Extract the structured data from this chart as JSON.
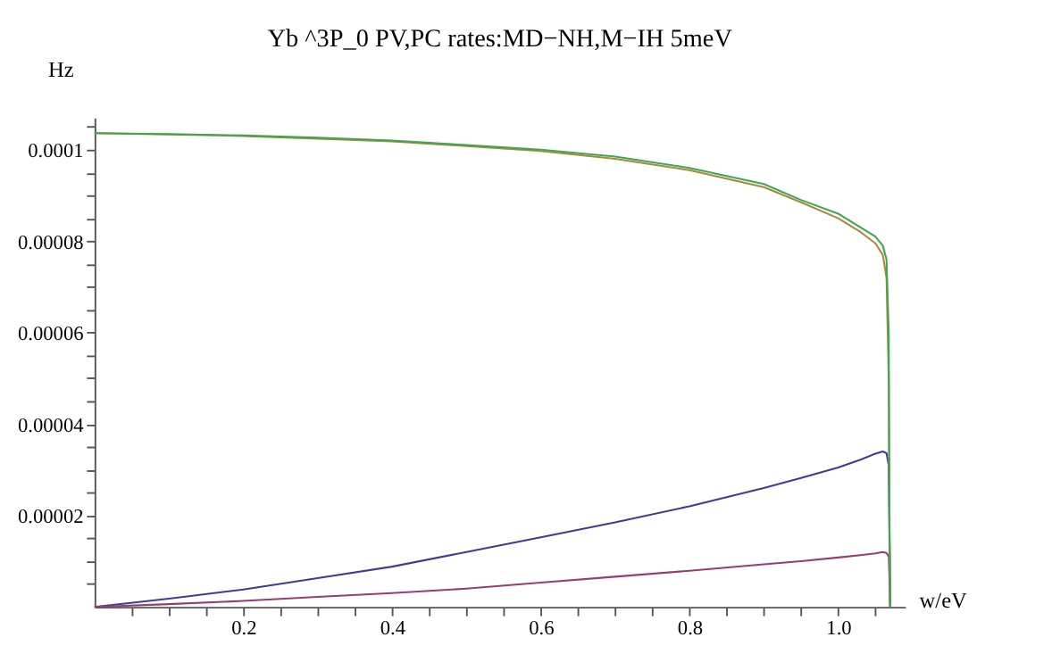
{
  "chart_data": {
    "type": "line",
    "title": "Yb ^3P_0 PV,PC rates:MD−NH,M−IH 5meV",
    "xlabel": "w/eV",
    "ylabel": "Hz",
    "xlim": [
      0,
      1.09
    ],
    "ylim": [
      0,
      0.000107
    ],
    "xticks": [
      {
        "value": 0.05,
        "label": null
      },
      {
        "value": 0.1,
        "label": null
      },
      {
        "value": 0.15,
        "label": null
      },
      0.2,
      {
        "value": 0.25,
        "label": null
      },
      {
        "value": 0.3,
        "label": null
      },
      {
        "value": 0.35,
        "label": null
      },
      0.4,
      {
        "value": 0.45,
        "label": null
      },
      {
        "value": 0.5,
        "label": null
      },
      {
        "value": 0.55,
        "label": null
      },
      0.6,
      {
        "value": 0.65,
        "label": null
      },
      {
        "value": 0.7,
        "label": null
      },
      {
        "value": 0.75,
        "label": null
      },
      0.8,
      {
        "value": 0.85,
        "label": null
      },
      {
        "value": 0.9,
        "label": null
      },
      {
        "value": 0.95,
        "label": null
      },
      {
        "value": 1.0,
        "label": "1.0"
      },
      {
        "value": 1.05,
        "label": null
      }
    ],
    "yticks": [
      {
        "value": 5e-06,
        "label": null
      },
      {
        "value": 1e-05,
        "label": null
      },
      {
        "value": 1.5e-05,
        "label": null
      },
      {
        "value": 2e-05,
        "label": "0.00002"
      },
      {
        "value": 2.5e-05,
        "label": null
      },
      {
        "value": 3e-05,
        "label": null
      },
      {
        "value": 3.5e-05,
        "label": null
      },
      {
        "value": 4e-05,
        "label": "0.00004"
      },
      {
        "value": 4.5e-05,
        "label": null
      },
      {
        "value": 5e-05,
        "label": null
      },
      {
        "value": 5.5e-05,
        "label": null
      },
      {
        "value": 6e-05,
        "label": "0.00006"
      },
      {
        "value": 6.5e-05,
        "label": null
      },
      {
        "value": 7e-05,
        "label": null
      },
      {
        "value": 7.5e-05,
        "label": null
      },
      {
        "value": 8e-05,
        "label": "0.00008"
      },
      {
        "value": 8.5e-05,
        "label": null
      },
      {
        "value": 9e-05,
        "label": null
      },
      {
        "value": 9.5e-05,
        "label": null
      },
      0.0001,
      {
        "value": 0.000105,
        "label": null
      }
    ],
    "grid": false,
    "marker": "none",
    "line_style": "solid",
    "x": [
      0,
      0.1,
      0.2,
      0.3,
      0.4,
      0.5,
      0.6,
      0.7,
      0.8,
      0.9,
      0.95,
      1.0,
      1.03,
      1.05,
      1.06,
      1.065,
      1.068,
      1.069,
      1.07
    ],
    "series": [
      {
        "color": "#3d3d99",
        "values": [
          0,
          1.8e-06,
          3.8e-06,
          6.3e-06,
          8.8e-06,
          1.2e-05,
          1.52e-05,
          1.85e-05,
          2.2e-05,
          2.6e-05,
          2.82e-05,
          3.05e-05,
          3.22e-05,
          3.35e-05,
          3.4e-05,
          3.36e-05,
          3.1e-05,
          1.5e-05,
          0
        ]
      },
      {
        "color": "#993d70",
        "values": [
          0,
          6e-07,
          1.3e-06,
          2.2e-06,
          3e-06,
          4e-06,
          5.3e-06,
          6.6e-06,
          7.9e-06,
          9.3e-06,
          1e-05,
          1.08e-05,
          1.13e-05,
          1.17e-05,
          1.2e-05,
          1.18e-05,
          1.1e-05,
          6e-06,
          0
        ]
      },
      {
        "color": "#a88a3c",
        "values": [
          0.0001036,
          0.0001033,
          0.000103,
          0.0001024,
          0.0001018,
          0.0001008,
          9.97e-05,
          9.8e-05,
          9.55e-05,
          9.18e-05,
          8.85e-05,
          8.5e-05,
          8.2e-05,
          7.95e-05,
          7.7e-05,
          7.2e-05,
          5e-05,
          1.5e-05,
          0
        ]
      },
      {
        "color": "#3da84f",
        "values": [
          0.0001036,
          0.0001034,
          0.0001031,
          0.0001026,
          0.000102,
          0.000101,
          0.0001,
          9.85e-05,
          9.6e-05,
          9.25e-05,
          8.9e-05,
          8.6e-05,
          8.3e-05,
          8.1e-05,
          7.9e-05,
          7.6e-05,
          6e-05,
          2e-05,
          0
        ]
      }
    ]
  }
}
